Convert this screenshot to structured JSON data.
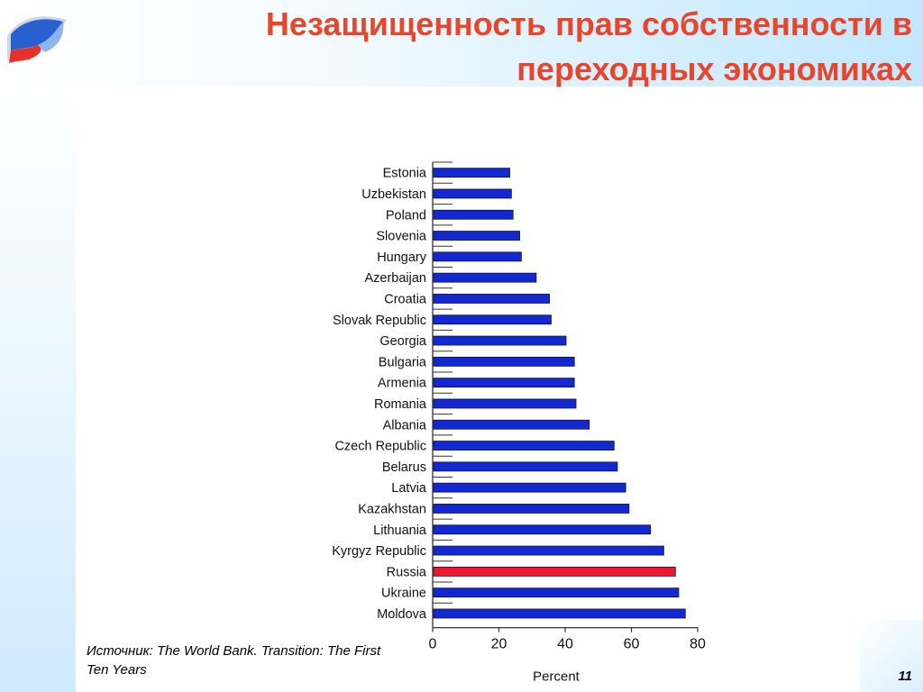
{
  "slide": {
    "title_line1": "Незащищенность прав собственности  в",
    "title_line2": "переходных экономиках",
    "source": "Источник: The World Bank. Transition: The First Ten Years",
    "page_number": "11",
    "logo_icon": "flag-wave-logo-icon"
  },
  "colors": {
    "title": "#e8452a",
    "bar": "#1428d2",
    "highlight": "#f2142a",
    "axis": "#333333"
  },
  "chart_data": {
    "type": "bar",
    "orientation": "horizontal",
    "title": "",
    "xlabel": "Percent",
    "ylabel": "",
    "xlim": [
      0,
      80
    ],
    "xticks": [
      0,
      20,
      40,
      60,
      80
    ],
    "grid": false,
    "legend": "none",
    "highlight_category": "Russia",
    "categories": [
      "Estonia",
      "Uzbekistan",
      "Poland",
      "Slovenia",
      "Hungary",
      "Azerbaijan",
      "Croatia",
      "Slovak Republic",
      "Georgia",
      "Bulgaria",
      "Armenia",
      "Romania",
      "Albania",
      "Czech Republic",
      "Belarus",
      "Latvia",
      "Kazakhstan",
      "Lithuania",
      "Kyrgyz Republic",
      "Russia",
      "Ukraine",
      "Moldova"
    ],
    "values": [
      23,
      23.5,
      24,
      26,
      26.5,
      31,
      35,
      35.5,
      40,
      42.5,
      42.5,
      43,
      47,
      54.5,
      55.5,
      58,
      59,
      65.5,
      69.5,
      73,
      74,
      76
    ]
  }
}
